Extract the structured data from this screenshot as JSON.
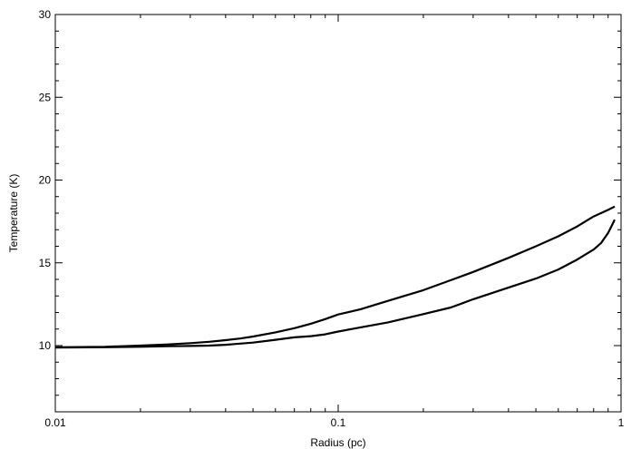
{
  "chart_data": {
    "type": "line",
    "title": "",
    "xlabel": "Radius (pc)",
    "ylabel": "Temperature (K)",
    "xscale": "log",
    "xlim": [
      0.01,
      1
    ],
    "ylim": [
      6,
      30
    ],
    "grid": false,
    "legend": "none",
    "line_color": "#000000",
    "x_ticks": [
      {
        "value": 0.01,
        "label": "0.01"
      },
      {
        "value": 0.1,
        "label": "0.1"
      },
      {
        "value": 1,
        "label": "1"
      }
    ],
    "y_ticks": [
      {
        "value": 10,
        "label": "10"
      },
      {
        "value": 15,
        "label": "15"
      },
      {
        "value": 20,
        "label": "20"
      },
      {
        "value": 25,
        "label": "25"
      },
      {
        "value": 30,
        "label": "30"
      }
    ],
    "series": [
      {
        "x": [
          0.01,
          0.015,
          0.02,
          0.025,
          0.03,
          0.035,
          0.04,
          0.045,
          0.05,
          0.06,
          0.07,
          0.08,
          0.09,
          0.1,
          0.12,
          0.15,
          0.2,
          0.25,
          0.3,
          0.4,
          0.5,
          0.6,
          0.7,
          0.8,
          0.9,
          0.95
        ],
        "y": [
          9.9,
          9.93,
          10.0,
          10.07,
          10.15,
          10.23,
          10.33,
          10.43,
          10.55,
          10.8,
          11.05,
          11.32,
          11.6,
          11.88,
          12.2,
          12.7,
          13.35,
          13.95,
          14.45,
          15.3,
          16.0,
          16.6,
          17.2,
          17.8,
          18.2,
          18.4
        ]
      },
      {
        "x": [
          0.01,
          0.015,
          0.02,
          0.025,
          0.03,
          0.035,
          0.04,
          0.05,
          0.06,
          0.07,
          0.08,
          0.09,
          0.1,
          0.12,
          0.15,
          0.2,
          0.25,
          0.3,
          0.4,
          0.5,
          0.6,
          0.7,
          0.8,
          0.85,
          0.9,
          0.95
        ],
        "y": [
          9.88,
          9.9,
          9.93,
          9.96,
          9.98,
          10.0,
          10.05,
          10.18,
          10.35,
          10.5,
          10.57,
          10.68,
          10.85,
          11.1,
          11.4,
          11.9,
          12.3,
          12.8,
          13.5,
          14.05,
          14.6,
          15.2,
          15.8,
          16.2,
          16.8,
          17.6
        ]
      }
    ]
  }
}
